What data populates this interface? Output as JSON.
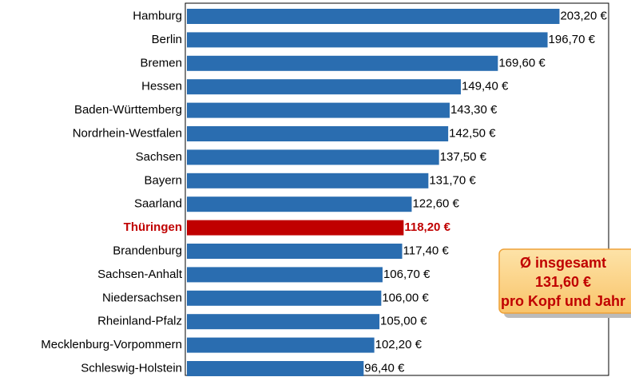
{
  "chart_data": {
    "type": "barh",
    "categories": [
      "Hamburg",
      "Berlin",
      "Bremen",
      "Hessen",
      "Baden-Württemberg",
      "Nordrhein-Westfalen",
      "Sachsen",
      "Bayern",
      "Saarland",
      "Thüringen",
      "Brandenburg",
      "Sachsen-Anhalt",
      "Niedersachsen",
      "Rheinland-Pfalz",
      "Mecklenburg-Vorpommern",
      "Schleswig-Holstein"
    ],
    "values": [
      203.2,
      196.7,
      169.6,
      149.4,
      143.3,
      142.5,
      137.5,
      131.7,
      122.6,
      118.2,
      117.4,
      106.7,
      106.0,
      105.0,
      102.2,
      96.4
    ],
    "value_labels": [
      "203,20 €",
      "196,70 €",
      "169,60 €",
      "149,40 €",
      "143,30 €",
      "142,50 €",
      "137,50 €",
      "131,70 €",
      "122,60 €",
      "118,20 €",
      "117,40 €",
      "106,70 €",
      "106,00 €",
      "105,00 €",
      "102,20 €",
      "96,40 €"
    ],
    "color": "#2a6db0",
    "highlight_index": 9,
    "highlight_color": "#c00000",
    "xlim": [
      0,
      230
    ],
    "annotation": [
      "Ø insgesamt",
      "131,60 €",
      "pro Kopf und Jahr"
    ]
  }
}
